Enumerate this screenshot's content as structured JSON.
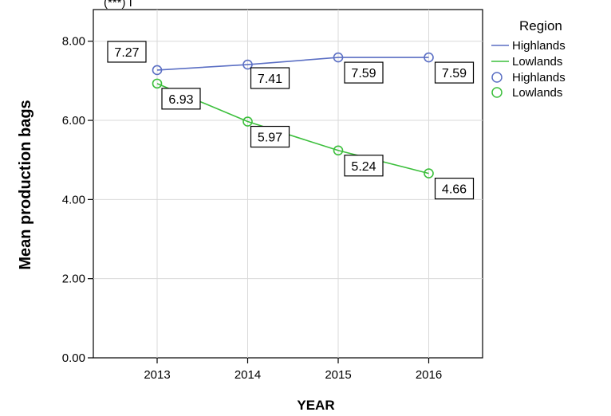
{
  "chart_data": {
    "type": "line",
    "categories": [
      "2013",
      "2014",
      "2015",
      "2016"
    ],
    "series": [
      {
        "name": "Highlands",
        "values": [
          7.27,
          7.41,
          7.59,
          7.59
        ],
        "color": "#5b6fc4"
      },
      {
        "name": "Lowlands",
        "values": [
          6.93,
          5.97,
          5.24,
          4.66
        ],
        "color": "#3cbf3c"
      }
    ],
    "data_labels": {
      "Highlands": [
        "7.27",
        "7.41",
        "7.59",
        "7.59"
      ],
      "Lowlands": [
        "6.93",
        "5.97",
        "5.24",
        "4.66"
      ]
    },
    "xlabel": "YEAR",
    "ylabel": "Mean production bags",
    "ylim": [
      0,
      8.8
    ],
    "yticks": [
      "0.00",
      "2.00",
      "4.00",
      "6.00",
      "8.00"
    ],
    "grid": true,
    "legend": {
      "title": "Region",
      "placement": "right",
      "line_entries": [
        "Highlands",
        "Lowlands"
      ],
      "marker_entries": [
        "Highlands",
        "Lowlands"
      ]
    },
    "top_text": "(***) I"
  }
}
